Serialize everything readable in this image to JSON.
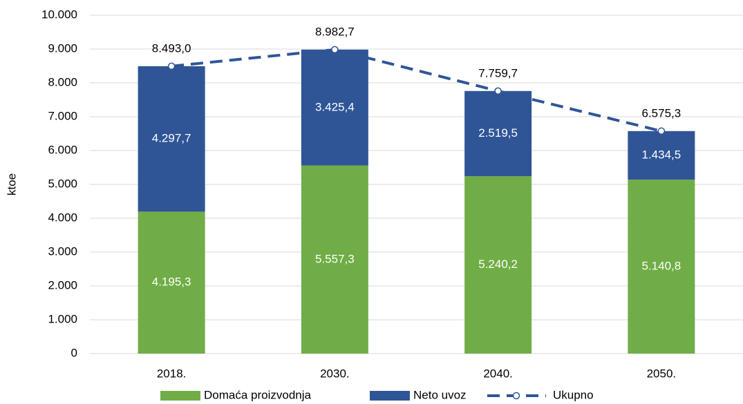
{
  "chart_data": {
    "type": "bar",
    "stacked": true,
    "y_label": "ktoe",
    "categories": [
      "2018.",
      "2030.",
      "2040.",
      "2050."
    ],
    "series": [
      {
        "name": "Domaća proizvodnja",
        "color": "#70ad47",
        "type": "bar",
        "values": [
          4195.3,
          5557.3,
          5240.2,
          5140.8
        ],
        "value_labels": [
          "4.195,3",
          "5.557,3",
          "5.240,2",
          "5.140,8"
        ]
      },
      {
        "name": "Neto uvoz",
        "color": "#2f5597",
        "type": "bar",
        "values": [
          4297.7,
          3425.4,
          2519.5,
          1434.5
        ],
        "value_labels": [
          "4.297,7",
          "3.425,4",
          "2.519,5",
          "1.434,5"
        ]
      },
      {
        "name": "Ukupno",
        "color": "#2f5597",
        "type": "line",
        "dashed": true,
        "values": [
          8493.0,
          8982.7,
          7759.7,
          6575.3
        ],
        "value_labels": [
          "8.493,0",
          "8.982,7",
          "7.759,7",
          "6.575,3"
        ]
      }
    ],
    "ylim": [
      0,
      10000
    ],
    "yticks": [
      0,
      {
        "value": 1000,
        "label": "1.000"
      },
      {
        "value": 2000,
        "label": "2.000"
      },
      {
        "value": 3000,
        "label": "3.000"
      },
      {
        "value": 4000,
        "label": "4.000"
      },
      {
        "value": 5000,
        "label": "5.000"
      },
      {
        "value": 6000,
        "label": "6.000"
      },
      {
        "value": 7000,
        "label": "7.000"
      },
      {
        "value": 8000,
        "label": "8.000"
      },
      {
        "value": 9000,
        "label": "9.000"
      },
      {
        "value": 10000,
        "label": "10.000"
      }
    ],
    "grid": true,
    "legend": "bottom"
  }
}
